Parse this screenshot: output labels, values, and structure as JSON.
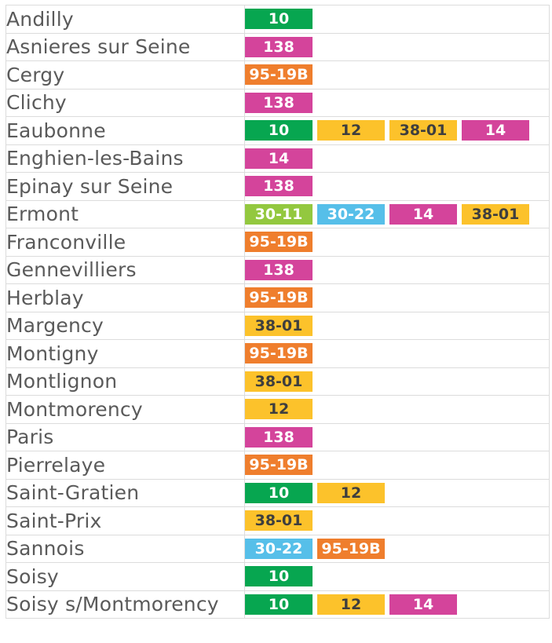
{
  "colors": {
    "green": "#07a650",
    "pink": "#d4449b",
    "orange": "#ef7e2d",
    "yellow": "#fcc22b",
    "lime": "#93c83f",
    "sky": "#56bfe9"
  },
  "rows": [
    {
      "town": "Andilly",
      "lines": [
        {
          "label": "10",
          "color": "green"
        }
      ]
    },
    {
      "town": "Asnieres sur Seine",
      "lines": [
        {
          "label": "138",
          "color": "pink"
        }
      ]
    },
    {
      "town": "Cergy",
      "lines": [
        {
          "label": "95-19B",
          "color": "orange"
        }
      ]
    },
    {
      "town": "Clichy",
      "lines": [
        {
          "label": "138",
          "color": "pink"
        }
      ]
    },
    {
      "town": "Eaubonne",
      "lines": [
        {
          "label": "10",
          "color": "green"
        },
        {
          "label": "12",
          "color": "yellow"
        },
        {
          "label": "38-01",
          "color": "yellow"
        },
        {
          "label": "14",
          "color": "pink"
        }
      ]
    },
    {
      "town": "Enghien-les-Bains",
      "lines": [
        {
          "label": "14",
          "color": "pink"
        }
      ]
    },
    {
      "town": "Epinay sur Seine",
      "lines": [
        {
          "label": "138",
          "color": "pink"
        }
      ]
    },
    {
      "town": "Ermont",
      "lines": [
        {
          "label": "30-11",
          "color": "lime"
        },
        {
          "label": "30-22",
          "color": "sky"
        },
        {
          "label": "14",
          "color": "pink"
        },
        {
          "label": "38-01",
          "color": "yellow"
        }
      ]
    },
    {
      "town": "Franconville",
      "lines": [
        {
          "label": "95-19B",
          "color": "orange"
        }
      ]
    },
    {
      "town": "Gennevilliers",
      "lines": [
        {
          "label": "138",
          "color": "pink"
        }
      ]
    },
    {
      "town": "Herblay",
      "lines": [
        {
          "label": "95-19B",
          "color": "orange"
        }
      ]
    },
    {
      "town": "Margency",
      "lines": [
        {
          "label": "38-01",
          "color": "yellow"
        }
      ]
    },
    {
      "town": "Montigny",
      "lines": [
        {
          "label": "95-19B",
          "color": "orange"
        }
      ]
    },
    {
      "town": "Montlignon",
      "lines": [
        {
          "label": "38-01",
          "color": "yellow"
        }
      ]
    },
    {
      "town": "Montmorency",
      "lines": [
        {
          "label": "12",
          "color": "yellow"
        }
      ]
    },
    {
      "town": "Paris",
      "lines": [
        {
          "label": "138",
          "color": "pink"
        }
      ]
    },
    {
      "town": "Pierrelaye",
      "lines": [
        {
          "label": "95-19B",
          "color": "orange"
        }
      ]
    },
    {
      "town": "Saint-Gratien",
      "lines": [
        {
          "label": "10",
          "color": "green"
        },
        {
          "label": "12",
          "color": "yellow"
        }
      ]
    },
    {
      "town": "Saint-Prix",
      "lines": [
        {
          "label": "38-01",
          "color": "yellow"
        }
      ]
    },
    {
      "town": "Sannois",
      "lines": [
        {
          "label": "30-22",
          "color": "sky"
        },
        {
          "label": "95-19B",
          "color": "orange"
        }
      ]
    },
    {
      "town": "Soisy",
      "lines": [
        {
          "label": "10",
          "color": "green"
        }
      ]
    },
    {
      "town": "Soisy s/Montmorency",
      "lines": [
        {
          "label": "10",
          "color": "green"
        },
        {
          "label": "12",
          "color": "yellow"
        },
        {
          "label": "14",
          "color": "pink"
        }
      ]
    }
  ]
}
